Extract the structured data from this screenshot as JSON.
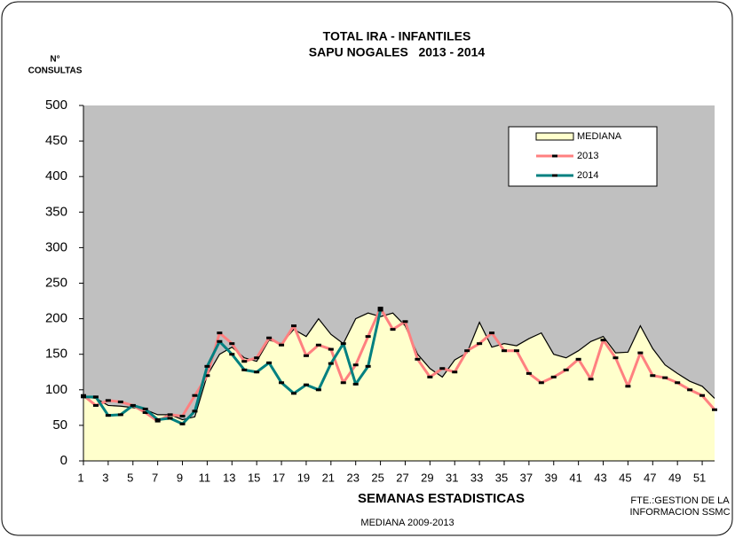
{
  "chart_data": {
    "type": "line",
    "title": "TOTAL IRA - INFANTILES",
    "subtitle": "SAPU NOGALES   2013 - 2014",
    "ylabel": [
      "N°",
      "CONSULTAS"
    ],
    "xlabel": "SEMANAS ESTADISTICAS",
    "note": "MEDIANA 2009-2013",
    "source": [
      "FTE.:GESTION DE LA",
      "INFORMACION SSMC"
    ],
    "x": [
      1,
      2,
      3,
      4,
      5,
      6,
      7,
      8,
      9,
      10,
      11,
      12,
      13,
      14,
      15,
      16,
      17,
      18,
      19,
      20,
      21,
      22,
      23,
      24,
      25,
      26,
      27,
      28,
      29,
      30,
      31,
      32,
      33,
      34,
      35,
      36,
      37,
      38,
      39,
      40,
      41,
      42,
      43,
      44,
      45,
      46,
      47,
      48,
      49,
      50,
      51,
      52
    ],
    "xlim": [
      1,
      52
    ],
    "xticks": [
      1,
      3,
      5,
      7,
      9,
      11,
      13,
      15,
      17,
      19,
      21,
      23,
      25,
      27,
      29,
      31,
      33,
      35,
      37,
      39,
      41,
      43,
      45,
      47,
      49,
      51
    ],
    "ylim": [
      0,
      500
    ],
    "yticks": [
      0,
      50,
      100,
      150,
      200,
      250,
      300,
      350,
      400,
      450,
      500
    ],
    "plot_background": "#c0c0c0",
    "series": [
      {
        "name": "MEDIANA",
        "color": "#000000",
        "fill": "#ffffcc",
        "area": true,
        "values": [
          90,
          88,
          78,
          77,
          75,
          72,
          65,
          65,
          58,
          62,
          120,
          150,
          160,
          145,
          140,
          170,
          165,
          185,
          175,
          200,
          178,
          165,
          200,
          208,
          203,
          208,
          190,
          150,
          130,
          118,
          142,
          152,
          195,
          160,
          165,
          162,
          172,
          180,
          150,
          145,
          155,
          168,
          175,
          152,
          153,
          190,
          158,
          135,
          123,
          112,
          105,
          88
        ]
      },
      {
        "name": "2013",
        "color": "#ff8080",
        "values": [
          92,
          78,
          85,
          83,
          78,
          68,
          56,
          65,
          63,
          92,
          120,
          180,
          165,
          140,
          145,
          173,
          163,
          190,
          148,
          163,
          157,
          110,
          135,
          175,
          215,
          185,
          196,
          143,
          118,
          130,
          125,
          155,
          165,
          180,
          155,
          155,
          123,
          110,
          118,
          128,
          143,
          115,
          170,
          145,
          105,
          152,
          120,
          117,
          110,
          100,
          92,
          72
        ]
      },
      {
        "name": "2014",
        "color": "#008080",
        "values": [
          90,
          90,
          64,
          65,
          78,
          73,
          58,
          60,
          52,
          70,
          133,
          168,
          150,
          128,
          125,
          138,
          110,
          95,
          107,
          100,
          137,
          165,
          108,
          133,
          212,
          null,
          null,
          null,
          null,
          null,
          null,
          null,
          null,
          null,
          null,
          null,
          null,
          null,
          null,
          null,
          null,
          null,
          null,
          null,
          null,
          null,
          null,
          null,
          null,
          null,
          null,
          null
        ]
      }
    ]
  }
}
